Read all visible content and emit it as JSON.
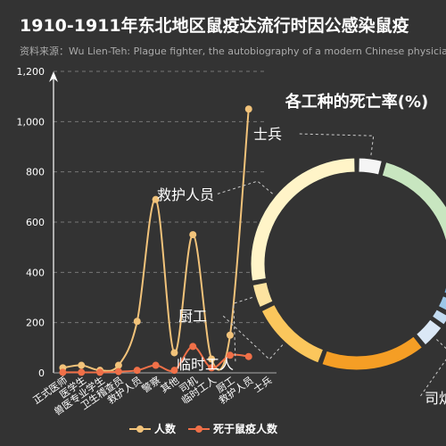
{
  "chart_data": [
    {
      "type": "line",
      "title": "1910-1911年东北地区鼠疫达流行时因公感染鼠疫",
      "subtitle": "资料来源：Wu Lien-Teh: Plague fighter, the autobiography of a modern Chinese physician",
      "categories": [
        "正式医师",
        "医学生",
        "兽医专业学生",
        "卫生稽查员",
        "救护人员",
        "警察",
        "其他",
        "司机",
        "临时工人",
        "厨工",
        "救护人员",
        "士兵"
      ],
      "ylim": [
        0,
        1200
      ],
      "yticks": [
        "0",
        "200",
        "400",
        "600",
        "800",
        "1,000",
        "1,200"
      ],
      "series": [
        {
          "name": "人数",
          "color": "#f2c37a",
          "values": [
            20,
            30,
            10,
            30,
            205,
            690,
            80,
            550,
            55,
            150,
            1050,
            null
          ]
        },
        {
          "name": "死于鼠疫人数",
          "color": "#f07048",
          "values": [
            2,
            2,
            2,
            5,
            10,
            30,
            10,
            105,
            20,
            70,
            65,
            null
          ]
        }
      ]
    },
    {
      "type": "pie",
      "title": "各工种的死亡率(%)",
      "labels_visible": [
        "士兵",
        "救护人员",
        "厨工",
        "临时工人",
        "司炉"
      ],
      "slices": [
        {
          "label": "士兵",
          "value": 4,
          "color": "#f5f5f5"
        },
        {
          "label": "",
          "value": 20,
          "color": "#c8e6c0"
        },
        {
          "label": "",
          "value": 1.2,
          "color": "#6cc26c"
        },
        {
          "label": "",
          "value": 1.2,
          "color": "#a2d4a0"
        },
        {
          "label": "",
          "value": 3,
          "color": "#6aaedd"
        },
        {
          "label": "",
          "value": 2.5,
          "color": "#9cc7e8"
        },
        {
          "label": "",
          "value": 2,
          "color": "#c2dbf1"
        },
        {
          "label": "司炉",
          "value": 4,
          "color": "#dbe8f6"
        },
        {
          "label": "",
          "value": 16,
          "color": "#f59e25"
        },
        {
          "label": "厨工",
          "value": 12,
          "color": "#fbc65c"
        },
        {
          "label": "临时工人",
          "value": 4,
          "color": "#fde3a0"
        },
        {
          "label": "救护人员",
          "value": 27,
          "color": "#fff4c8"
        }
      ]
    }
  ]
}
